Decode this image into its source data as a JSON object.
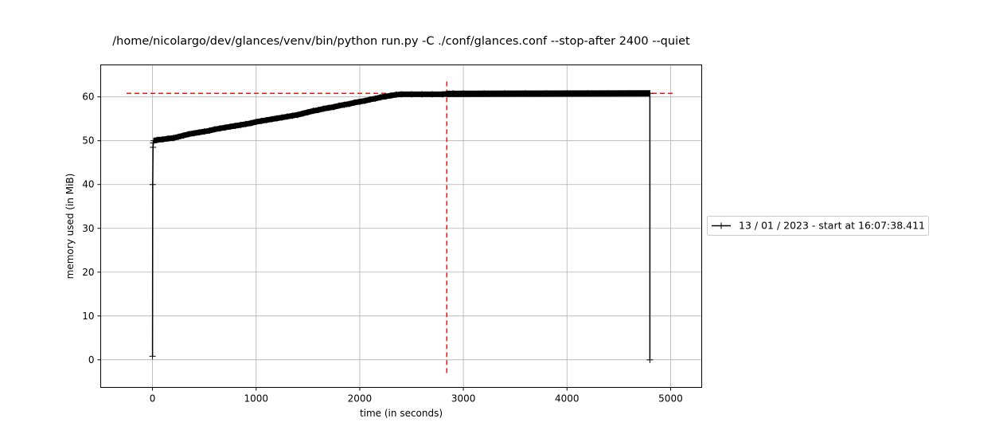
{
  "chart_data": {
    "type": "line",
    "title": "/home/nicolargo/dev/glances/venv/bin/python run.py -C ./conf/glances.conf --stop-after 2400 --quiet",
    "xlabel": "time (in seconds)",
    "ylabel": "memory used (in MiB)",
    "xlim": [
      -500,
      5300
    ],
    "ylim": [
      -6.3,
      67.3
    ],
    "xticks": [
      0,
      1000,
      2000,
      3000,
      4000,
      5000
    ],
    "yticks": [
      0,
      10,
      20,
      30,
      40,
      50,
      60
    ],
    "xtick_labels": [
      "0",
      "1000",
      "2000",
      "3000",
      "4000",
      "5000"
    ],
    "ytick_labels": [
      "0",
      "10",
      "20",
      "30",
      "40",
      "50",
      "60"
    ],
    "grid": true,
    "legend_position": "outside-right",
    "series": [
      {
        "name": "13 / 01 / 2023 - start at 16:07:38.411",
        "color": "#000000",
        "marker": "+",
        "x": [
          0,
          2,
          5,
          8,
          12,
          50,
          100,
          150,
          200,
          250,
          300,
          350,
          400,
          450,
          500,
          550,
          600,
          650,
          700,
          750,
          800,
          850,
          900,
          950,
          1000,
          1050,
          1100,
          1150,
          1200,
          1250,
          1300,
          1350,
          1400,
          1450,
          1500,
          1550,
          1600,
          1650,
          1700,
          1750,
          1800,
          1850,
          1900,
          1950,
          2000,
          2050,
          2100,
          2150,
          2200,
          2250,
          2300,
          2350,
          2400,
          2500,
          2600,
          2700,
          2800,
          2840,
          2900,
          3000,
          3200,
          3400,
          3600,
          3800,
          4000,
          4200,
          4400,
          4600,
          4800,
          4800
        ],
        "values": [
          0.8,
          40.0,
          48.5,
          49.5,
          50.0,
          50.2,
          50.3,
          50.5,
          50.6,
          50.9,
          51.2,
          51.5,
          51.7,
          51.9,
          52.1,
          52.3,
          52.6,
          52.8,
          53.0,
          53.2,
          53.4,
          53.6,
          53.8,
          54.0,
          54.3,
          54.5,
          54.7,
          54.9,
          55.1,
          55.3,
          55.5,
          55.7,
          55.9,
          56.2,
          56.5,
          56.8,
          57.0,
          57.3,
          57.5,
          57.7,
          58.0,
          58.2,
          58.4,
          58.7,
          58.9,
          59.1,
          59.4,
          59.6,
          59.9,
          60.1,
          60.3,
          60.5,
          60.6,
          60.6,
          60.6,
          60.6,
          60.6,
          60.7,
          60.8,
          60.8,
          60.8,
          60.8,
          60.8,
          60.8,
          60.8,
          60.8,
          60.8,
          60.8,
          60.8,
          0.0
        ]
      }
    ],
    "reference_lines": [
      {
        "orientation": "horizontal",
        "value": 60.8,
        "xrange": [
          -250,
          5050
        ],
        "color": "#e41a1c",
        "style": "dashed"
      },
      {
        "orientation": "vertical",
        "value": 2840,
        "yrange": [
          -3,
          63.8
        ],
        "color": "#e41a1c",
        "style": "dashed"
      }
    ]
  }
}
